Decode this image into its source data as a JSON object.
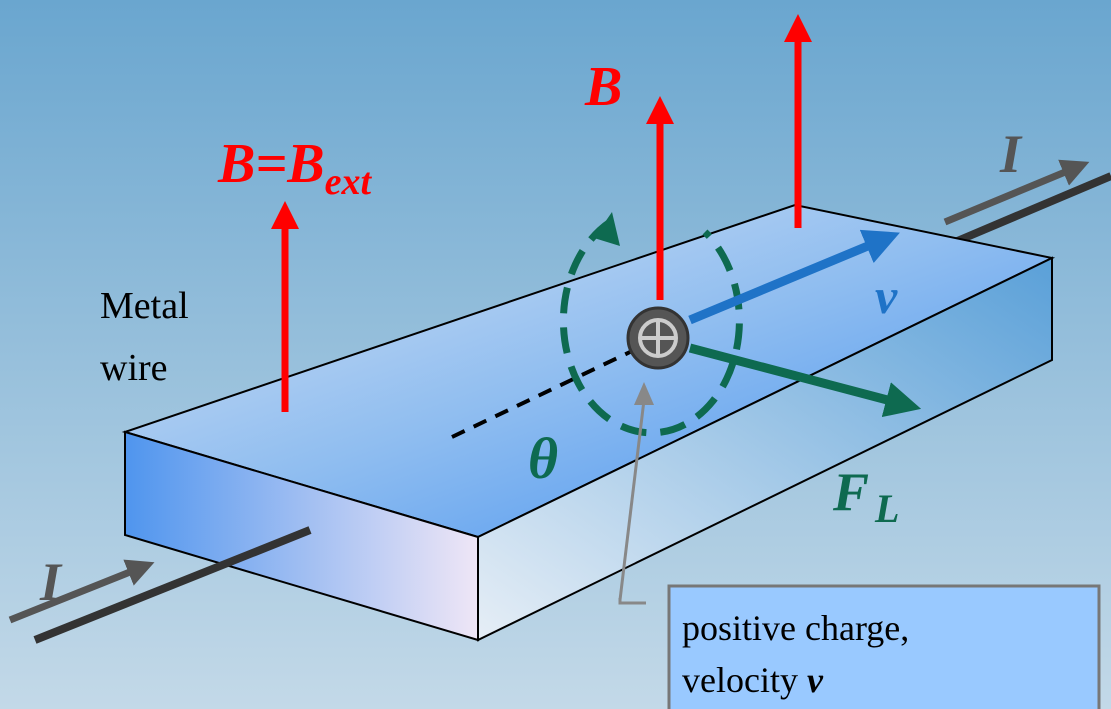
{
  "labels": {
    "b_ext": {
      "main": "B=B",
      "sub": "ext"
    },
    "b_local": "B",
    "current_in": "I",
    "current_out": "I",
    "velocity": "v",
    "force": {
      "main": "F",
      "sub": "L"
    },
    "angle": "θ",
    "material": [
      "Metal",
      "wire"
    ]
  },
  "callout": {
    "lines": [
      "positive charge,",
      "velocity"
    ],
    "symbol": "v"
  }
}
